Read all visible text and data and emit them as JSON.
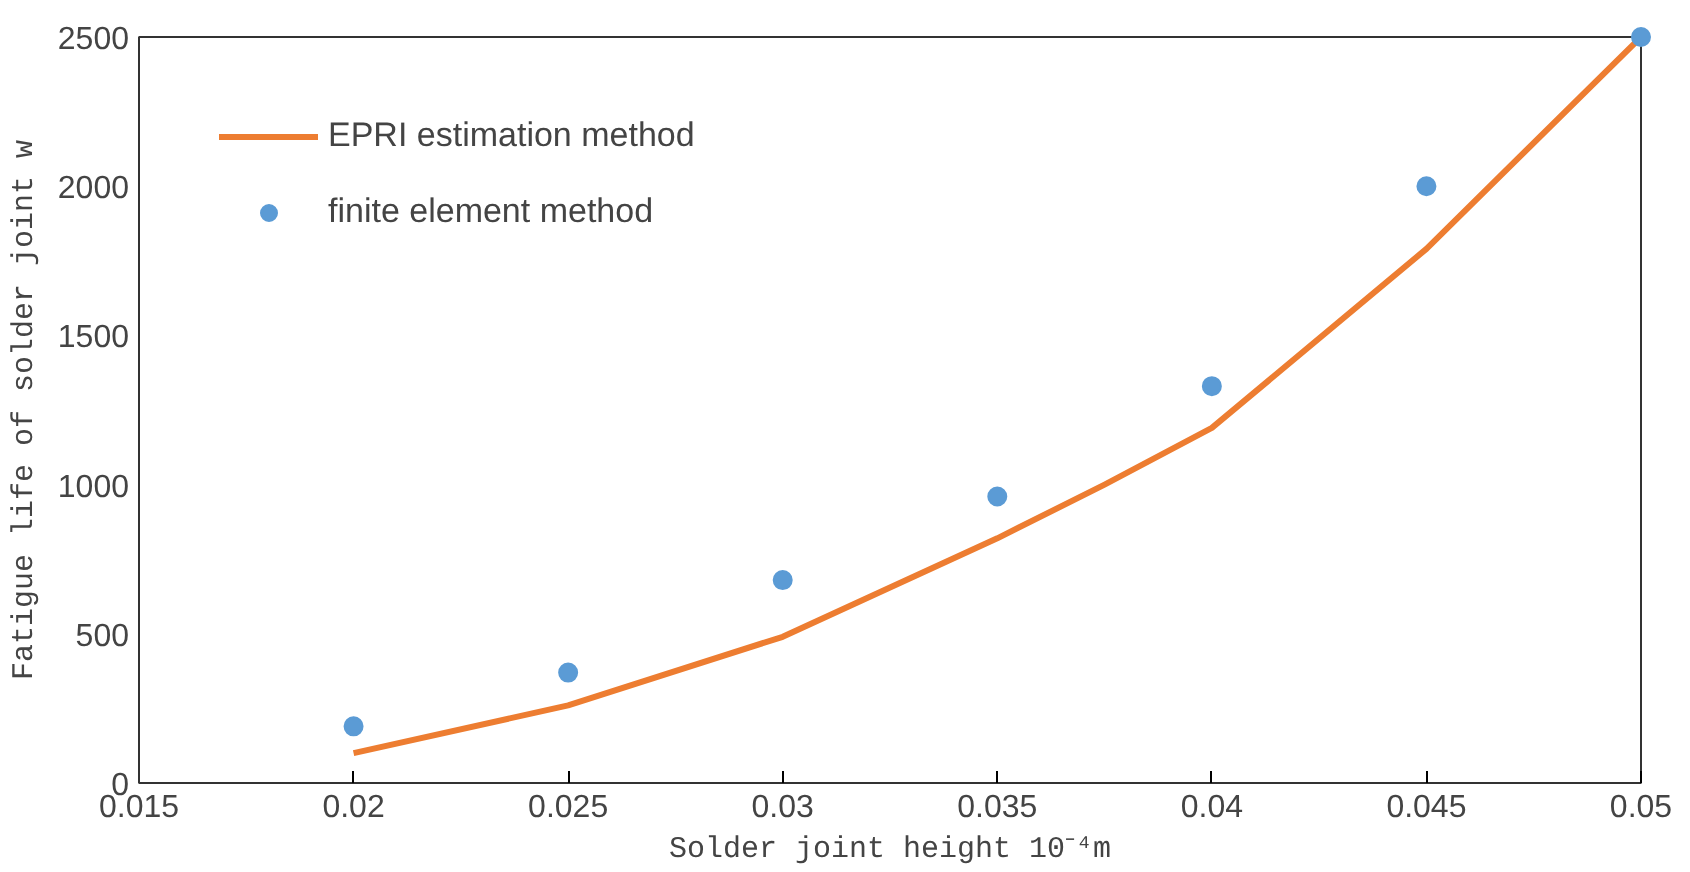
{
  "chart_data": {
    "type": "line",
    "xlabel": "Solder joint height 10⁻⁴m",
    "ylabel": "Fatigue life of solder joint w",
    "xlim": [
      0.015,
      0.05
    ],
    "xticks": [
      0.015,
      0.02,
      0.025,
      0.03,
      0.035,
      0.04,
      0.045,
      0.05
    ],
    "ylim": [
      0,
      2500
    ],
    "yticks": [
      0,
      500,
      1000,
      1500,
      2000,
      2500
    ],
    "grid": false,
    "legend": "top left",
    "series": [
      {
        "name": "EPRI estimation method",
        "color": "#ed7d31",
        "x": [
          0.02,
          0.025,
          0.03,
          0.035,
          0.0375,
          0.04,
          0.045,
          0.05
        ],
        "values": [
          100,
          260,
          490,
          820,
          1000,
          1190,
          1790,
          2500
        ]
      },
      {
        "name": "finite element method",
        "type": "scatter",
        "marker": "circle",
        "color": "#5b9bd5",
        "x": [
          0.02,
          0.025,
          0.03,
          0.035,
          0.04,
          0.045,
          0.05
        ],
        "values": [
          190,
          370,
          680,
          960,
          1330,
          2000,
          2500
        ]
      }
    ]
  }
}
